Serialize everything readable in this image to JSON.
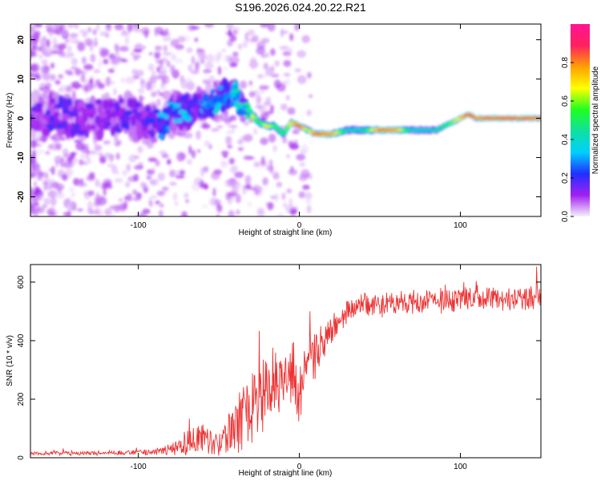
{
  "title": "S196.2026.024.20.22.R21",
  "chart_data": [
    {
      "type": "heatmap",
      "xlabel": "Height of straight line (km)",
      "ylabel": "Frequency (Hz)",
      "xlim": [
        -167,
        150
      ],
      "ylim": [
        -25,
        24
      ],
      "xticks": [
        -100,
        0,
        100
      ],
      "xtick_labels": [
        "-100",
        "0",
        "100"
      ],
      "yticks": [
        -20,
        -10,
        0,
        10,
        20
      ],
      "ytick_labels": [
        "-20",
        "-10",
        "0",
        "10",
        "20"
      ],
      "colorbar": {
        "label": "Normalized spectral amplitude",
        "range": [
          0,
          1
        ],
        "ticks": [
          0.0,
          0.2,
          0.4,
          0.6,
          0.8
        ],
        "tick_labels": [
          "0.0",
          "0.2",
          "0.4",
          "0.6",
          "0.8"
        ],
        "colors": [
          "#f6f1fb",
          "#a020f0",
          "#2030ff",
          "#00d0ff",
          "#10e0a0",
          "#20ff20",
          "#ffff00",
          "#ffa000",
          "#ff2060",
          "#ff1493"
        ]
      },
      "ridge": {
        "height_km": [
          -167,
          -150,
          -130,
          -110,
          -100,
          -90,
          -85,
          -80,
          -70,
          -60,
          -50,
          -40,
          -35,
          -30,
          -25,
          -20,
          -15,
          -10,
          -5,
          0,
          5,
          10,
          20,
          30,
          40,
          50,
          60,
          70,
          80,
          85,
          90,
          95,
          100,
          105,
          110,
          120,
          130,
          140,
          150
        ],
        "frequency_hz": [
          0,
          1,
          0,
          1,
          0,
          -1,
          -2,
          1,
          2,
          3,
          5,
          6,
          3,
          1,
          -1,
          -2,
          -2,
          -4,
          -1,
          -2,
          -3,
          -4,
          -4,
          -3,
          -3,
          -3,
          -3,
          -3,
          -3,
          -3,
          -2,
          -1,
          0,
          1,
          0,
          0,
          0,
          0,
          0
        ],
        "amplitude": [
          0.15,
          0.18,
          0.15,
          0.18,
          0.2,
          0.25,
          0.3,
          0.3,
          0.3,
          0.3,
          0.35,
          0.35,
          0.6,
          0.7,
          0.5,
          0.7,
          0.55,
          0.5,
          0.7,
          0.9,
          0.6,
          0.85,
          0.8,
          0.4,
          0.45,
          0.85,
          0.8,
          0.4,
          0.4,
          0.45,
          0.5,
          0.6,
          0.7,
          0.9,
          0.8,
          0.85,
          0.85,
          0.85,
          0.85
        ],
        "width_hz": [
          5,
          5,
          5,
          5,
          5,
          4,
          4,
          4,
          4,
          4,
          4,
          4,
          2.5,
          2,
          1.8,
          1.6,
          1.6,
          1.8,
          1.4,
          1.4,
          1.4,
          1.4,
          1.4,
          1.6,
          1.6,
          1.4,
          1.4,
          1.5,
          1.5,
          1.4,
          1.2,
          1.2,
          1.2,
          1.2,
          1.2,
          1.2,
          1.2,
          1.2,
          1.2
        ]
      }
    },
    {
      "type": "line",
      "xlabel": "Height of straight line (km)",
      "ylabel": "SNR (10 * v/v)",
      "xlim": [
        -167,
        150
      ],
      "ylim": [
        0,
        660
      ],
      "xticks": [
        -100,
        0,
        100
      ],
      "xtick_labels": [
        "-100",
        "0",
        "100"
      ],
      "yticks": [
        0,
        200,
        400,
        600
      ],
      "ytick_labels": [
        "0",
        "200",
        "400",
        "600"
      ],
      "color": "#ee3333",
      "envelope": {
        "height_km": [
          -167,
          -100,
          -90,
          -80,
          -70,
          -60,
          -55,
          -50,
          -45,
          -40,
          -35,
          -30,
          -25,
          -20,
          -15,
          -10,
          -5,
          0,
          5,
          10,
          15,
          20,
          25,
          30,
          40,
          60,
          80,
          100,
          120,
          140,
          150
        ],
        "mean": [
          15,
          17,
          20,
          30,
          50,
          80,
          65,
          40,
          70,
          100,
          150,
          170,
          200,
          240,
          270,
          260,
          300,
          230,
          300,
          350,
          390,
          430,
          470,
          500,
          520,
          530,
          535,
          540,
          545,
          545,
          550
        ],
        "spread": [
          8,
          10,
          15,
          25,
          60,
          70,
          60,
          35,
          70,
          110,
          130,
          140,
          160,
          140,
          140,
          140,
          140,
          130,
          120,
          100,
          80,
          70,
          60,
          50,
          50,
          50,
          50,
          55,
          55,
          55,
          50
        ]
      }
    }
  ]
}
